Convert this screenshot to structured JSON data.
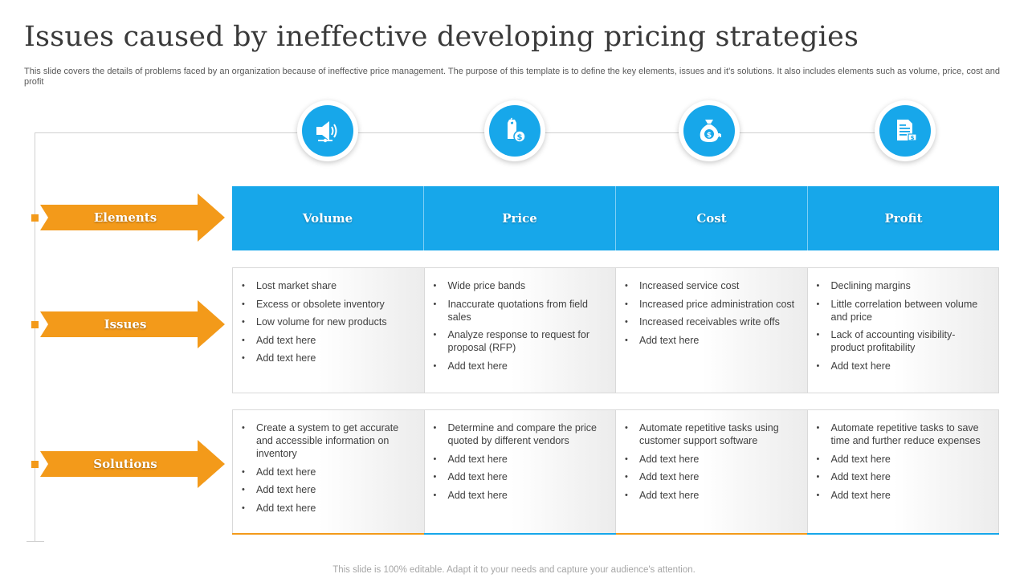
{
  "title": "Issues caused by ineffective developing pricing strategies",
  "subtitle": "This slide covers the details of problems faced by an organization because of ineffective price management. The purpose of this template is to define the key elements, issues and it’s solutions. It also includes elements such as volume, price, cost and profit",
  "icons": [
    "megaphone-icon",
    "price-tag-icon",
    "money-bag-icon",
    "invoice-icon"
  ],
  "row_labels": {
    "elements": "Elements",
    "issues": "Issues",
    "solutions": "Solutions"
  },
  "columns": [
    "Volume",
    "Price",
    "Cost",
    "Profit"
  ],
  "issues": [
    [
      "Lost market share",
      "Excess or obsolete inventory",
      "Low volume for new products",
      "Add text here",
      "Add text here"
    ],
    [
      "Wide price bands",
      "Inaccurate quotations from field sales",
      "Analyze response to request for proposal (RFP)",
      "Add text here"
    ],
    [
      "Increased service cost",
      "Increased price administration cost",
      "Increased receivables write offs",
      "Add text here"
    ],
    [
      "Declining margins",
      "Little correlation between volume and price",
      "Lack of accounting visibility- product profitability",
      "Add text here"
    ]
  ],
  "solutions": [
    [
      "Create a system to get accurate and accessible information on inventory",
      "Add text here",
      "Add text here",
      "Add text here"
    ],
    [
      "Determine and compare the price quoted by different vendors",
      "Add text here",
      "Add text here",
      "Add text here"
    ],
    [
      "Automate repetitive tasks using customer support software",
      "Add text here",
      "Add text here",
      "Add text here"
    ],
    [
      "Automate repetitive tasks to save time and further reduce expenses",
      "Add text here",
      "Add text here",
      "Add text here"
    ]
  ],
  "colors": {
    "accent_blue": "#17a7ea",
    "accent_orange": "#f39a1a"
  },
  "footer": "This slide is 100% editable. Adapt it to your needs and capture your audience's attention."
}
